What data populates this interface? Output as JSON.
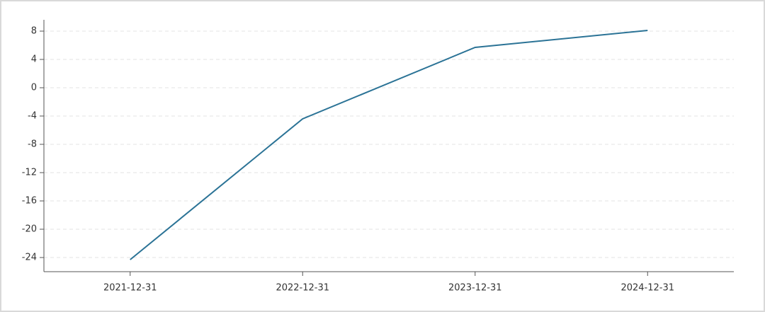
{
  "chart_data": {
    "type": "line",
    "categories": [
      "2021-12-31",
      "2022-12-31",
      "2023-12-31",
      "2024-12-31"
    ],
    "series": [
      {
        "color": "#2b7396",
        "values": [
          -24.3,
          -4.4,
          5.7,
          8.1
        ]
      }
    ],
    "ylim": [
      -26,
      9.6
    ],
    "yticks": [
      -24,
      -20,
      -16,
      -12,
      -8,
      -4,
      0,
      4,
      8
    ],
    "grid": true
  }
}
